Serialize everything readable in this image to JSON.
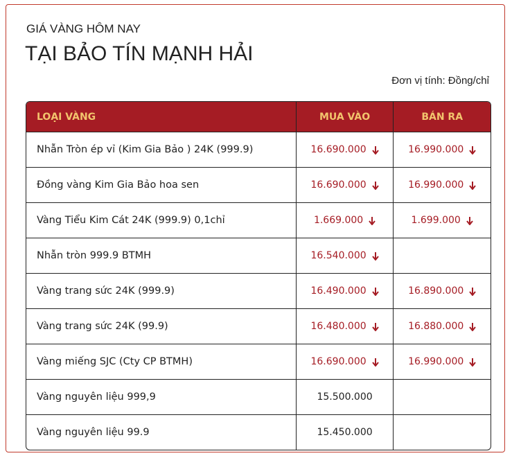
{
  "header": {
    "subtitle": "GIÁ VÀNG HÔM NAY",
    "title": "TẠI BẢO TÍN MẠNH HẢI",
    "unit": "Đơn vị tính: Đồng/chỉ"
  },
  "table": {
    "columns": [
      "LOẠI VÀNG",
      "MUA VÀO",
      "BÁN RA"
    ],
    "rows": [
      {
        "name": "Nhẫn Tròn ép vỉ (Kim Gia Bảo ) 24K (999.9)",
        "buy": "16.690.000",
        "sell": "16.990.000"
      },
      {
        "name": "Đồng vàng Kim Gia Bảo hoa sen",
        "buy": "16.690.000",
        "sell": "16.990.000"
      },
      {
        "name": "Vàng Tiểu Kim Cát 24K (999.9) 0,1chỉ",
        "buy": "1.669.000",
        "sell": "1.699.000"
      },
      {
        "name": "Nhẫn tròn 999.9 BTMH",
        "buy": "16.540.000"
      },
      {
        "name": "Vàng trang sức 24K (999.9)",
        "buy": "16.490.000",
        "sell": "16.890.000"
      },
      {
        "name": "Vàng trang sức 24K (99.9)",
        "buy": "16.480.000",
        "sell": "16.880.000"
      },
      {
        "name": "Vàng miếng SJC (Cty CP BTMH)",
        "buy": "16.690.000",
        "sell": "16.990.000"
      },
      {
        "name": "Vàng nguyên liệu 999,9",
        "buy": "15.500.000"
      },
      {
        "name": "Vàng nguyên liệu 99.9",
        "buy": "15.450.000"
      }
    ]
  }
}
